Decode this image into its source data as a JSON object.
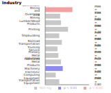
{
  "chart_data": {
    "type": "bar",
    "title": "Industry",
    "orientation": "horizontal",
    "stacked": true,
    "data_labels": true,
    "tick_labels": "y",
    "legend": "bottom right",
    "xlim": [
      0,
      2.5
    ],
    "categories": [
      "Nonmetallic Mining and Quarrying",
      "Coal Mining",
      "Lumber/Wood Products",
      "Printing",
      "Shipbuilding",
      "Railroad Transportation",
      "Trucking Service",
      "Primary Metal Industries",
      "Fabricated Metal Products",
      "Machinery",
      "Electronic Computing Equipment",
      "Transportation Equipment"
    ],
    "series": [
      {
        "name": "Non-sig",
        "color": "#c8c8c8",
        "values": [
          null,
          0.85,
          0.9,
          1.3,
          0.8,
          0.95,
          0.7,
          0.75,
          0.9,
          null,
          0.6,
          0.8
        ],
        "value_labels": [
          null,
          "PMR = 0.85",
          "PMR = 0.90",
          "PMR = 1.30",
          "PMR = 0.80",
          "PMR = 0.95",
          "PMR = 0.70",
          "PMR = 0.75",
          "PMR = 0.90",
          null,
          "PMR = 0.60",
          "PMR = 0.80"
        ]
      },
      {
        "name": "p < 0.05",
        "color": "#f4a0a0",
        "values": [
          1.55,
          null,
          null,
          null,
          null,
          null,
          null,
          null,
          null,
          null,
          null,
          null
        ],
        "value_labels": [
          "PMR = 1.55",
          null,
          null,
          null,
          null,
          null,
          null,
          null,
          null,
          null,
          null,
          null
        ]
      },
      {
        "name": "p < 0.01",
        "color": "#8c8cf0",
        "values": [
          null,
          null,
          null,
          null,
          null,
          null,
          null,
          null,
          null,
          1.0,
          null,
          null
        ],
        "value_labels": [
          null,
          null,
          null,
          null,
          null,
          null,
          null,
          null,
          null,
          "PMR = 1.00",
          null,
          null
        ]
      }
    ]
  }
}
